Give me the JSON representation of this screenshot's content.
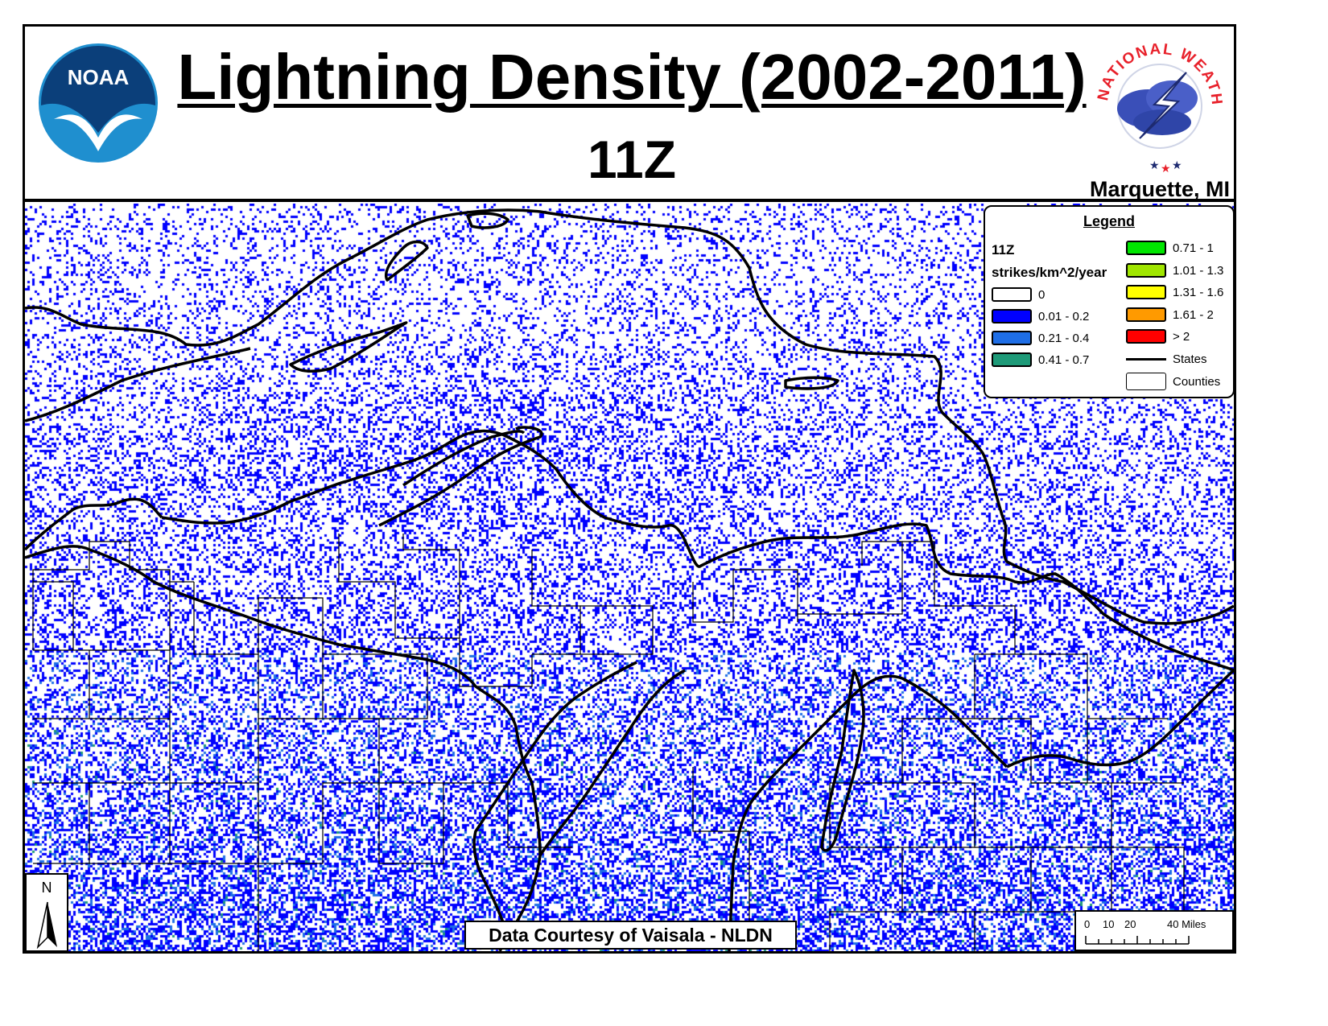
{
  "title": "Lightning Density (2002-2011)",
  "subtitle": "11Z",
  "office": "Marquette, MI",
  "logos": {
    "noaa_text": "NOAA",
    "nws_text": "NATIONAL WEATHER SERVICE"
  },
  "legend": {
    "title": "Legend",
    "hour": "11Z",
    "units": "strikes/km^2/year",
    "classes": [
      {
        "label": "0",
        "color": "#ffffff"
      },
      {
        "label": "0.01 - 0.2",
        "color": "#0000ff"
      },
      {
        "label": "0.21 - 0.4",
        "color": "#1e6ee6"
      },
      {
        "label": "0.41 - 0.7",
        "color": "#1e9a78"
      },
      {
        "label": "0.71 - 1",
        "color": "#00e600"
      },
      {
        "label": "1.01 - 1.3",
        "color": "#a0e600"
      },
      {
        "label": "1.31 - 1.6",
        "color": "#ffff00"
      },
      {
        "label": "1.61 - 2",
        "color": "#ff9a00"
      },
      {
        "label": "> 2",
        "color": "#ff0000"
      }
    ],
    "states_label": "States",
    "counties_label": "Counties"
  },
  "credit": "Data Courtesy of Vaisala - NLDN",
  "north_label": "N",
  "scale": {
    "ticks": [
      "0",
      "10",
      "20",
      "40 Miles"
    ]
  },
  "colors": {
    "density_low": "#0000ff",
    "density_mid": "#1e6ee6",
    "density_high": "#1e9a78",
    "noaa_blue": "#0a5a96",
    "nws_red": "#e8202a"
  }
}
